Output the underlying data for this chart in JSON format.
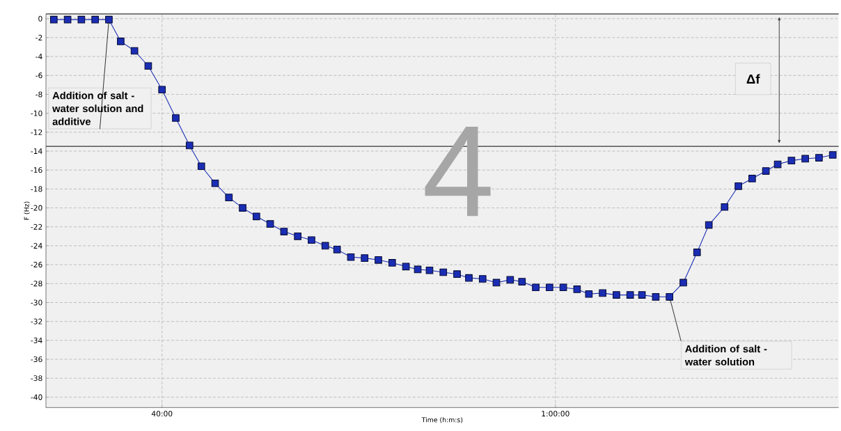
{
  "chart_data": {
    "type": "line",
    "xlabel": "Time (h:m:s)",
    "ylabel": "F (Hz)",
    "x": [
      34.5,
      35.2,
      35.9,
      36.6,
      37.3,
      37.9,
      38.6,
      39.3,
      40.0,
      40.7,
      41.4,
      42.0,
      42.7,
      43.4,
      44.1,
      44.8,
      45.5,
      46.2,
      46.9,
      47.6,
      48.3,
      48.9,
      49.6,
      50.3,
      51.0,
      51.7,
      52.4,
      53.0,
      53.6,
      54.3,
      55.0,
      55.6,
      56.3,
      57.0,
      57.7,
      58.3,
      59.0,
      59.7,
      60.4,
      61.1,
      61.7,
      62.4,
      63.1,
      63.8,
      64.4,
      65.1,
      65.8,
      66.5,
      67.2,
      67.8,
      68.6,
      69.3,
      70.0,
      70.7,
      71.3,
      72.0,
      72.7,
      73.4,
      74.1
    ],
    "series": [
      {
        "color": "#1a2db4",
        "values": [
          -0.1,
          -0.1,
          -0.1,
          -0.1,
          -0.1,
          -2.4,
          -3.4,
          -5.0,
          -7.5,
          -10.5,
          -13.4,
          -15.6,
          -17.4,
          -18.9,
          -20.0,
          -20.9,
          -21.7,
          -22.5,
          -23.0,
          -23.4,
          -24.0,
          -24.4,
          -25.2,
          -25.3,
          -25.5,
          -25.8,
          -26.2,
          -26.5,
          -26.6,
          -26.8,
          -27.0,
          -27.4,
          -27.5,
          -27.9,
          -27.6,
          -27.8,
          -28.4,
          -28.4,
          -28.4,
          -28.6,
          -29.1,
          -29.0,
          -29.2,
          -29.2,
          -29.2,
          -29.4,
          -29.4,
          -27.9,
          -24.7,
          -21.8,
          -19.9,
          -17.7,
          -16.9,
          -16.1,
          -15.4,
          -15.0,
          -14.8,
          -14.7,
          -14.4
        ]
      }
    ],
    "xlim": [
      34.1,
      74.4
    ],
    "ylim": [
      -41.1,
      0.5
    ],
    "xticks": [
      {
        "value": 40,
        "label": "40:00"
      },
      {
        "value": 60,
        "label": "1:00:00"
      }
    ],
    "yticks": [
      -40,
      -38,
      -36,
      -34,
      -32,
      -30,
      -28,
      -26,
      -24,
      -22,
      -20,
      -18,
      -16,
      -14,
      -12,
      -10,
      -8,
      -6,
      -4,
      -2,
      0
    ],
    "grid": true,
    "marker": "square",
    "line_style": "solid",
    "ref_lines": [
      {
        "axis": "y",
        "value": 0.5,
        "color": "#555555"
      },
      {
        "axis": "y",
        "value": -13.5,
        "color": "#555555"
      }
    ],
    "annotations": [
      {
        "text": "Addition of salt - water solution and additive",
        "x": 37.3,
        "y": -0.1
      },
      {
        "text": "Addition of salt - water solution",
        "x": 65.8,
        "y": -29.4
      },
      "Δf",
      "4"
    ]
  }
}
